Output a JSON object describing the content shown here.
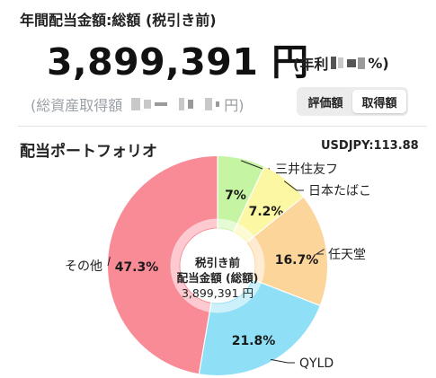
{
  "header": {
    "title": "年間配当金額:総額 (税引き前)",
    "total_amount": "3,899,391 円",
    "yield_prefix": "(年利",
    "yield_suffix": "%)"
  },
  "cost_row": {
    "prefix": "(総資産取得額",
    "suffix": "円)"
  },
  "toggle": {
    "option_valuation": "評価額",
    "option_cost": "取得額",
    "selected": "取得額"
  },
  "portfolio": {
    "title": "配当ポートフォリオ",
    "fx_rate": "USDJPY:113.88"
  },
  "donut_center": {
    "line1": "税引き前",
    "line2": "配当金額 (総額)",
    "line3": "3,899,391 円"
  },
  "chart_data": {
    "type": "pie",
    "categories": [
      "三井住友フ",
      "日本たばこ",
      "任天堂",
      "QYLD",
      "その他"
    ],
    "values": [
      7,
      7.2,
      16.7,
      21.8,
      47.3
    ],
    "value_labels": [
      "7%",
      "7.2%",
      "16.7%",
      "21.8%",
      "47.3%"
    ],
    "colors": [
      "#c5f5a2",
      "#fbf7a2",
      "#fcd59b",
      "#8fe0f7",
      "#f98b97"
    ],
    "inner_radius_ratio": 0.34
  }
}
